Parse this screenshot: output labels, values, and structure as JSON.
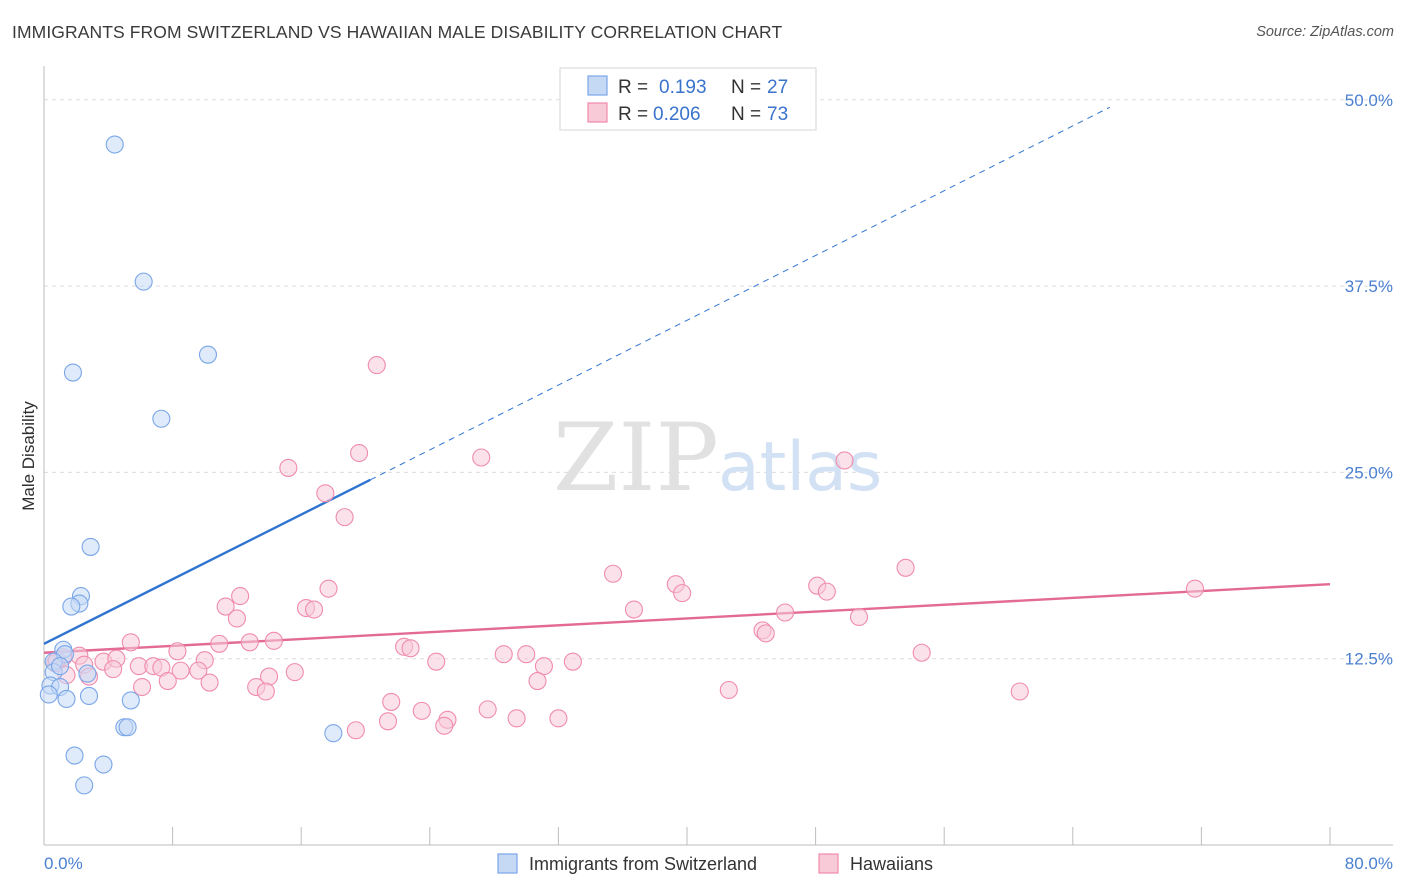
{
  "chart_data": {
    "type": "scatter",
    "title": "IMMIGRANTS FROM SWITZERLAND VS HAWAIIAN MALE DISABILITY CORRELATION CHART",
    "source": "Source: ZipAtlas.com",
    "ylabel": "Male Disability",
    "xlabel": "",
    "xlim": [
      0,
      80
    ],
    "ylim": [
      0,
      52
    ],
    "y_ticks": [
      {
        "value": 12.5,
        "label": "12.5%"
      },
      {
        "value": 25.0,
        "label": "25.0%"
      },
      {
        "value": 37.5,
        "label": "37.5%"
      },
      {
        "value": 50.0,
        "label": "50.0%"
      }
    ],
    "x_tick_values": [
      0,
      8,
      16,
      24,
      32,
      40,
      48,
      56,
      64,
      72,
      80
    ],
    "x_labels": {
      "left": "0.0%",
      "right": "80.0%"
    },
    "grid": true,
    "watermark": {
      "zip": "ZIP",
      "atlas": "atlas"
    },
    "legend_top": [
      {
        "r_label": "R =",
        "r_value": "0.193",
        "n_label": "N =",
        "n_value": "27"
      },
      {
        "r_label": "R =",
        "r_value": "0.206",
        "n_label": "N =",
        "n_value": "73"
      }
    ],
    "series": [
      {
        "name": "Immigrants from Switzerland",
        "color": "#7aa6e8",
        "fill": "#c5d9f5",
        "line_color": "#2f74d0",
        "trend": {
          "x0": 0,
          "y0": 13.5,
          "x1": 20.3,
          "y1": 24.5,
          "dash_to_x": 66.3,
          "dash_to_y": 49.5
        },
        "points": [
          [
            4.4,
            47.0
          ],
          [
            6.2,
            37.8
          ],
          [
            1.8,
            31.7
          ],
          [
            10.2,
            32.9
          ],
          [
            7.3,
            28.6
          ],
          [
            2.9,
            20.0
          ],
          [
            2.3,
            16.7
          ],
          [
            2.2,
            16.2
          ],
          [
            1.7,
            16.0
          ],
          [
            1.2,
            13.1
          ],
          [
            1.3,
            12.8
          ],
          [
            0.6,
            12.3
          ],
          [
            0.6,
            11.6
          ],
          [
            2.7,
            11.5
          ],
          [
            0.4,
            10.7
          ],
          [
            1.0,
            10.6
          ],
          [
            0.3,
            10.1
          ],
          [
            2.8,
            10.0
          ],
          [
            1.4,
            9.8
          ],
          [
            5.4,
            9.7
          ],
          [
            5.0,
            7.9
          ],
          [
            5.2,
            7.9
          ],
          [
            18.0,
            7.5
          ],
          [
            1.9,
            6.0
          ],
          [
            3.7,
            5.4
          ],
          [
            2.5,
            4.0
          ],
          [
            1.0,
            12.0
          ]
        ]
      },
      {
        "name": "Hawaiians",
        "color": "#f08cab",
        "fill": "#f8cad8",
        "line_color": "#e36a95",
        "trend": {
          "x0": 0,
          "y0": 12.9,
          "x1": 80,
          "y1": 17.5
        },
        "points": [
          [
            20.7,
            32.2
          ],
          [
            27.2,
            26.0
          ],
          [
            19.6,
            26.3
          ],
          [
            49.8,
            25.8
          ],
          [
            15.2,
            25.3
          ],
          [
            17.5,
            23.6
          ],
          [
            18.7,
            22.0
          ],
          [
            53.6,
            18.6
          ],
          [
            35.4,
            18.2
          ],
          [
            39.3,
            17.5
          ],
          [
            48.1,
            17.4
          ],
          [
            71.6,
            17.2
          ],
          [
            17.7,
            17.2
          ],
          [
            12.2,
            16.7
          ],
          [
            39.7,
            16.9
          ],
          [
            48.7,
            17.0
          ],
          [
            11.3,
            16.0
          ],
          [
            16.3,
            15.9
          ],
          [
            16.8,
            15.8
          ],
          [
            36.7,
            15.8
          ],
          [
            46.1,
            15.6
          ],
          [
            12.0,
            15.2
          ],
          [
            50.7,
            15.3
          ],
          [
            44.7,
            14.4
          ],
          [
            44.9,
            14.2
          ],
          [
            5.4,
            13.6
          ],
          [
            12.8,
            13.6
          ],
          [
            14.3,
            13.7
          ],
          [
            10.9,
            13.5
          ],
          [
            22.4,
            13.3
          ],
          [
            22.8,
            13.2
          ],
          [
            8.3,
            13.0
          ],
          [
            54.6,
            12.9
          ],
          [
            28.6,
            12.8
          ],
          [
            2.2,
            12.7
          ],
          [
            1.2,
            12.6
          ],
          [
            3.7,
            12.3
          ],
          [
            4.5,
            12.5
          ],
          [
            10.0,
            12.4
          ],
          [
            24.4,
            12.3
          ],
          [
            30.0,
            12.8
          ],
          [
            32.9,
            12.3
          ],
          [
            0.7,
            12.2
          ],
          [
            2.5,
            12.1
          ],
          [
            5.9,
            12.0
          ],
          [
            6.8,
            12.0
          ],
          [
            7.3,
            11.9
          ],
          [
            4.3,
            11.8
          ],
          [
            8.5,
            11.7
          ],
          [
            9.6,
            11.7
          ],
          [
            31.1,
            12.0
          ],
          [
            1.4,
            11.4
          ],
          [
            2.8,
            11.3
          ],
          [
            15.6,
            11.6
          ],
          [
            14.0,
            11.3
          ],
          [
            7.7,
            11.0
          ],
          [
            10.3,
            10.9
          ],
          [
            13.2,
            10.6
          ],
          [
            30.7,
            11.0
          ],
          [
            6.1,
            10.6
          ],
          [
            13.8,
            10.3
          ],
          [
            42.6,
            10.4
          ],
          [
            60.7,
            10.3
          ],
          [
            21.6,
            9.6
          ],
          [
            23.5,
            9.0
          ],
          [
            27.6,
            9.1
          ],
          [
            21.4,
            8.3
          ],
          [
            29.4,
            8.5
          ],
          [
            25.1,
            8.4
          ],
          [
            32.0,
            8.5
          ],
          [
            24.9,
            8.0
          ],
          [
            19.4,
            7.7
          ],
          [
            0.8,
            12.4
          ]
        ]
      }
    ]
  }
}
